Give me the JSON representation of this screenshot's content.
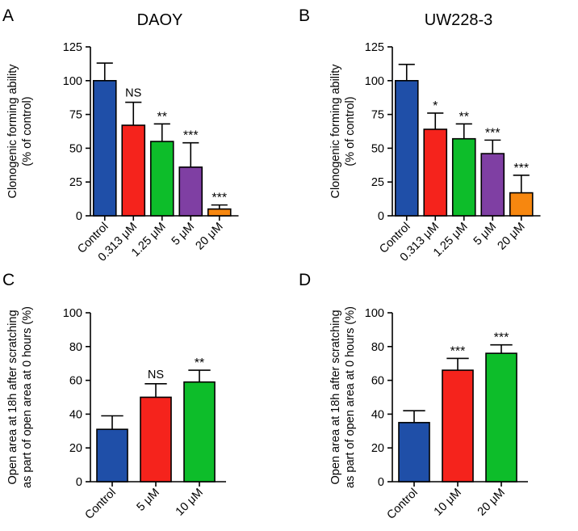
{
  "colors": {
    "control": "#1f4fa8",
    "red": "#f5231c",
    "green": "#0dbd2a",
    "purple": "#7f3fa3",
    "orange": "#f7870f",
    "axis": "#000000"
  },
  "chart_data": [
    {
      "panel": "A",
      "type": "bar",
      "title": "DAOY",
      "ylabel_lines": [
        "Clonogenic forming ability",
        "(% of control)"
      ],
      "categories": [
        "Control",
        "0.313 μM",
        "1.25 μM",
        "5 μM",
        "20 μM"
      ],
      "values": [
        100,
        67,
        55,
        36,
        5
      ],
      "errors": [
        13,
        17,
        13,
        18,
        3
      ],
      "significance": [
        "",
        "NS",
        "**",
        "***",
        "***"
      ],
      "bar_colors": [
        "#1f4fa8",
        "#f5231c",
        "#0dbd2a",
        "#7f3fa3",
        "#f7870f"
      ],
      "ylim": [
        0,
        125
      ],
      "yticks": [
        0,
        25,
        50,
        75,
        100,
        125
      ]
    },
    {
      "panel": "B",
      "type": "bar",
      "title": "UW228-3",
      "ylabel_lines": [
        "Clonogenic forming ability",
        "(% of control)"
      ],
      "categories": [
        "Control",
        "0.313 μM",
        "1.25 μM",
        "5 μM",
        "20 μM"
      ],
      "values": [
        100,
        64,
        57,
        46,
        17
      ],
      "errors": [
        12,
        12,
        11,
        10,
        13
      ],
      "significance": [
        "",
        "*",
        "**",
        "***",
        "***"
      ],
      "bar_colors": [
        "#1f4fa8",
        "#f5231c",
        "#0dbd2a",
        "#7f3fa3",
        "#f7870f"
      ],
      "ylim": [
        0,
        125
      ],
      "yticks": [
        0,
        25,
        50,
        75,
        100,
        125
      ]
    },
    {
      "panel": "C",
      "type": "bar",
      "title": "",
      "ylabel_lines": [
        "Open area at 18h after scratching",
        "as part of open area at 0 hours (%)"
      ],
      "categories": [
        "Control",
        "5 μM",
        "10 μM"
      ],
      "values": [
        31,
        50,
        59
      ],
      "errors": [
        8,
        8,
        7
      ],
      "significance": [
        "",
        "NS",
        "**"
      ],
      "bar_colors": [
        "#1f4fa8",
        "#f5231c",
        "#0dbd2a"
      ],
      "ylim": [
        0,
        100
      ],
      "yticks": [
        0,
        20,
        40,
        60,
        80,
        100
      ]
    },
    {
      "panel": "D",
      "type": "bar",
      "title": "",
      "ylabel_lines": [
        "Open area at 18h after scratching",
        "as part of open area at 0 hours (%)"
      ],
      "categories": [
        "Control",
        "10 μM",
        "20 μM"
      ],
      "values": [
        35,
        66,
        76
      ],
      "errors": [
        7,
        7,
        5
      ],
      "significance": [
        "",
        "***",
        "***"
      ],
      "bar_colors": [
        "#1f4fa8",
        "#f5231c",
        "#0dbd2a"
      ],
      "ylim": [
        0,
        100
      ],
      "yticks": [
        0,
        20,
        40,
        60,
        80,
        100
      ]
    }
  ]
}
